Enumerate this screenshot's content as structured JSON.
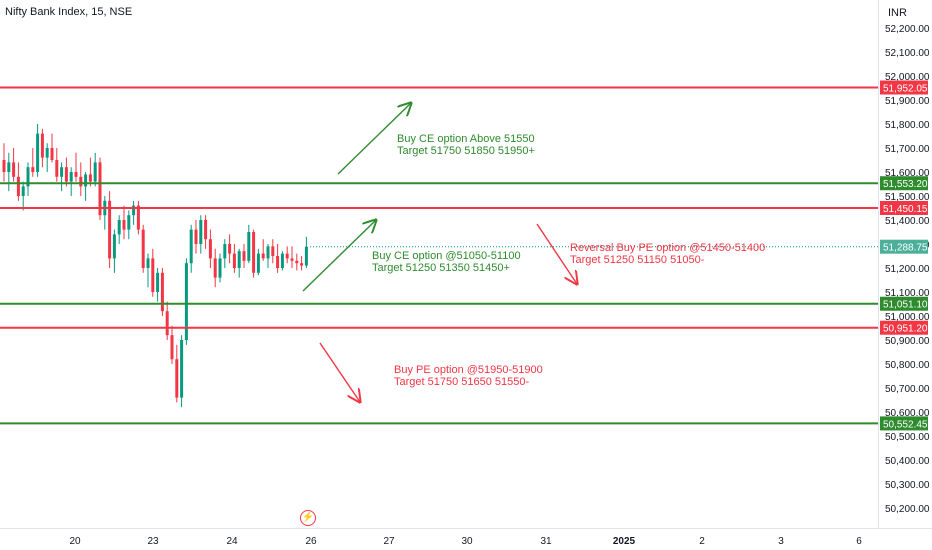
{
  "header": {
    "title": "Nifty Bank Index, 15, NSE",
    "currency": "INR"
  },
  "colors": {
    "up": "#089981",
    "down": "#f23645",
    "green_line": "#2e8b2e",
    "red_line": "#f23645",
    "blue_tag": "#4caf9a"
  },
  "icons": {
    "flash": "flash-icon"
  },
  "chart_data": {
    "type": "candlestick",
    "ylim": [
      50150,
      52260
    ],
    "yticks": [
      "52,200.00",
      "52,100.00",
      "52,000.00",
      "51,900.00",
      "51,800.00",
      "51,700.00",
      "51,600.00",
      "51,500.00",
      "51,400.00",
      "51,300.00",
      "51,200.00",
      "51,100.00",
      "51,000.00",
      "50,900.00",
      "50,800.00",
      "50,700.00",
      "50,600.00",
      "50,500.00",
      "50,400.00",
      "50,300.00",
      "50,200.00"
    ],
    "xticks": [
      {
        "label": "20",
        "bold": false
      },
      {
        "label": "23",
        "bold": false
      },
      {
        "label": "24",
        "bold": false
      },
      {
        "label": "26",
        "bold": false
      },
      {
        "label": "27",
        "bold": false
      },
      {
        "label": "30",
        "bold": false
      },
      {
        "label": "31",
        "bold": false
      },
      {
        "label": "2025",
        "bold": true
      },
      {
        "label": "2",
        "bold": false
      },
      {
        "label": "3",
        "bold": false
      },
      {
        "label": "6",
        "bold": false
      }
    ],
    "last_price": 51288.75,
    "last_price_label": "51,288.75",
    "levels": [
      {
        "price": 51952.05,
        "label": "51,952.05",
        "color": "red"
      },
      {
        "price": 51553.2,
        "label": "51,553.20",
        "color": "green"
      },
      {
        "price": 51450.15,
        "label": "51,450.15",
        "color": "red"
      },
      {
        "price": 51051.1,
        "label": "51,051.10",
        "color": "green"
      },
      {
        "price": 50951.2,
        "label": "50,951.20",
        "color": "red"
      },
      {
        "price": 50552.45,
        "label": "50,552.45",
        "color": "green"
      }
    ],
    "annotations": [
      {
        "lines": [
          "Buy CE option Above 51550",
          "Target 51750 51850 51950+"
        ],
        "color": "green"
      },
      {
        "lines": [
          "Buy CE option @51050-51100",
          "Target 51250 51350 51450+"
        ],
        "color": "green"
      },
      {
        "lines": [
          "Reversal Buy PE option @51450-51400",
          "Target 51250 51150 51050-"
        ],
        "color": "red"
      },
      {
        "lines": [
          "Buy PE option @51950-51900",
          "Target 51750 51650 51550-"
        ],
        "color": "red"
      }
    ],
    "candles": [
      [
        51650,
        51720,
        51560,
        51600
      ],
      [
        51600,
        51680,
        51520,
        51640
      ],
      [
        51640,
        51700,
        51560,
        51580
      ],
      [
        51580,
        51640,
        51480,
        51500
      ],
      [
        51500,
        51560,
        51440,
        51540
      ],
      [
        51540,
        51640,
        51500,
        51620
      ],
      [
        51620,
        51700,
        51580,
        51600
      ],
      [
        51600,
        51800,
        51580,
        51760
      ],
      [
        51760,
        51780,
        51620,
        51660
      ],
      [
        51660,
        51720,
        51600,
        51700
      ],
      [
        51700,
        51760,
        51640,
        51650
      ],
      [
        51650,
        51700,
        51560,
        51580
      ],
      [
        51580,
        51640,
        51520,
        51620
      ],
      [
        51620,
        51660,
        51540,
        51560
      ],
      [
        51560,
        51620,
        51500,
        51600
      ],
      [
        51600,
        51680,
        51560,
        51580
      ],
      [
        51580,
        51640,
        51500,
        51540
      ],
      [
        51540,
        51600,
        51480,
        51590
      ],
      [
        51590,
        51660,
        51540,
        51560
      ],
      [
        51560,
        51680,
        51540,
        51640
      ],
      [
        51640,
        51660,
        51400,
        51420
      ],
      [
        51420,
        51500,
        51360,
        51480
      ],
      [
        51480,
        51520,
        51200,
        51240
      ],
      [
        51240,
        51360,
        51180,
        51340
      ],
      [
        51340,
        51420,
        51300,
        51400
      ],
      [
        51400,
        51460,
        51320,
        51360
      ],
      [
        51360,
        51440,
        51320,
        51420
      ],
      [
        51420,
        51480,
        51380,
        51460
      ],
      [
        51460,
        51480,
        51340,
        51360
      ],
      [
        51360,
        51380,
        51180,
        51200
      ],
      [
        51200,
        51260,
        51120,
        51240
      ],
      [
        51240,
        51280,
        51080,
        51100
      ],
      [
        51100,
        51200,
        51060,
        51180
      ],
      [
        51180,
        51200,
        51000,
        51020
      ],
      [
        51020,
        51060,
        50900,
        50920
      ],
      [
        50920,
        50960,
        50800,
        50820
      ],
      [
        50820,
        50880,
        50640,
        50660
      ],
      [
        50660,
        50920,
        50620,
        50900
      ],
      [
        50900,
        51240,
        50880,
        51220
      ],
      [
        51220,
        51380,
        51180,
        51360
      ],
      [
        51360,
        51400,
        51260,
        51300
      ],
      [
        51300,
        51420,
        51260,
        51400
      ],
      [
        51400,
        51420,
        51280,
        51320
      ],
      [
        51320,
        51360,
        51200,
        51240
      ],
      [
        51240,
        51280,
        51120,
        51160
      ],
      [
        51160,
        51260,
        51140,
        51240
      ],
      [
        51240,
        51320,
        51200,
        51300
      ],
      [
        51300,
        51340,
        51220,
        51260
      ],
      [
        51260,
        51300,
        51180,
        51200
      ],
      [
        51200,
        51280,
        51160,
        51270
      ],
      [
        51270,
        51300,
        51200,
        51230
      ],
      [
        51230,
        51380,
        51220,
        51350
      ],
      [
        51350,
        51360,
        51160,
        51180
      ],
      [
        51180,
        51280,
        51170,
        51260
      ],
      [
        51260,
        51320,
        51230,
        51240
      ],
      [
        51240,
        51300,
        51200,
        51290
      ],
      [
        51290,
        51320,
        51220,
        51250
      ],
      [
        51250,
        51300,
        51180,
        51200
      ],
      [
        51200,
        51270,
        51190,
        51260
      ],
      [
        51260,
        51290,
        51220,
        51240
      ],
      [
        51240,
        51290,
        51200,
        51230
      ],
      [
        51230,
        51260,
        51190,
        51220
      ],
      [
        51220,
        51250,
        51190,
        51210
      ],
      [
        51210,
        51330,
        51200,
        51289
      ]
    ]
  }
}
